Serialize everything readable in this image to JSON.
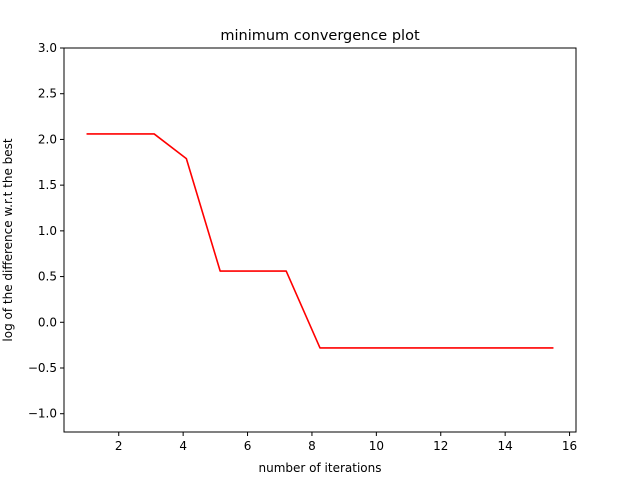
{
  "chart_data": {
    "type": "line",
    "title": "minimum convergence plot",
    "xlabel": "number of iterations",
    "ylabel": "log of the difference w.r.t the best",
    "xlim": [
      0.3,
      16.2
    ],
    "ylim": [
      -1.2,
      3.0
    ],
    "xticks": [
      2,
      4,
      6,
      8,
      10,
      12,
      14,
      16
    ],
    "yticks": [
      -1.0,
      -0.5,
      0.0,
      0.5,
      1.0,
      1.5,
      2.0,
      2.5,
      3.0
    ],
    "ytick_labels": [
      "−1.0",
      "−0.5",
      "0.0",
      "0.5",
      "1.0",
      "1.5",
      "2.0",
      "2.5",
      "3.0"
    ],
    "grid": false,
    "series": [
      {
        "color": "#ff0000",
        "x": [
          1.0,
          3.1,
          4.1,
          5.15,
          7.2,
          8.25,
          15.5
        ],
        "y": [
          2.06,
          2.06,
          1.79,
          0.56,
          0.56,
          -0.28,
          -0.28
        ]
      }
    ]
  }
}
